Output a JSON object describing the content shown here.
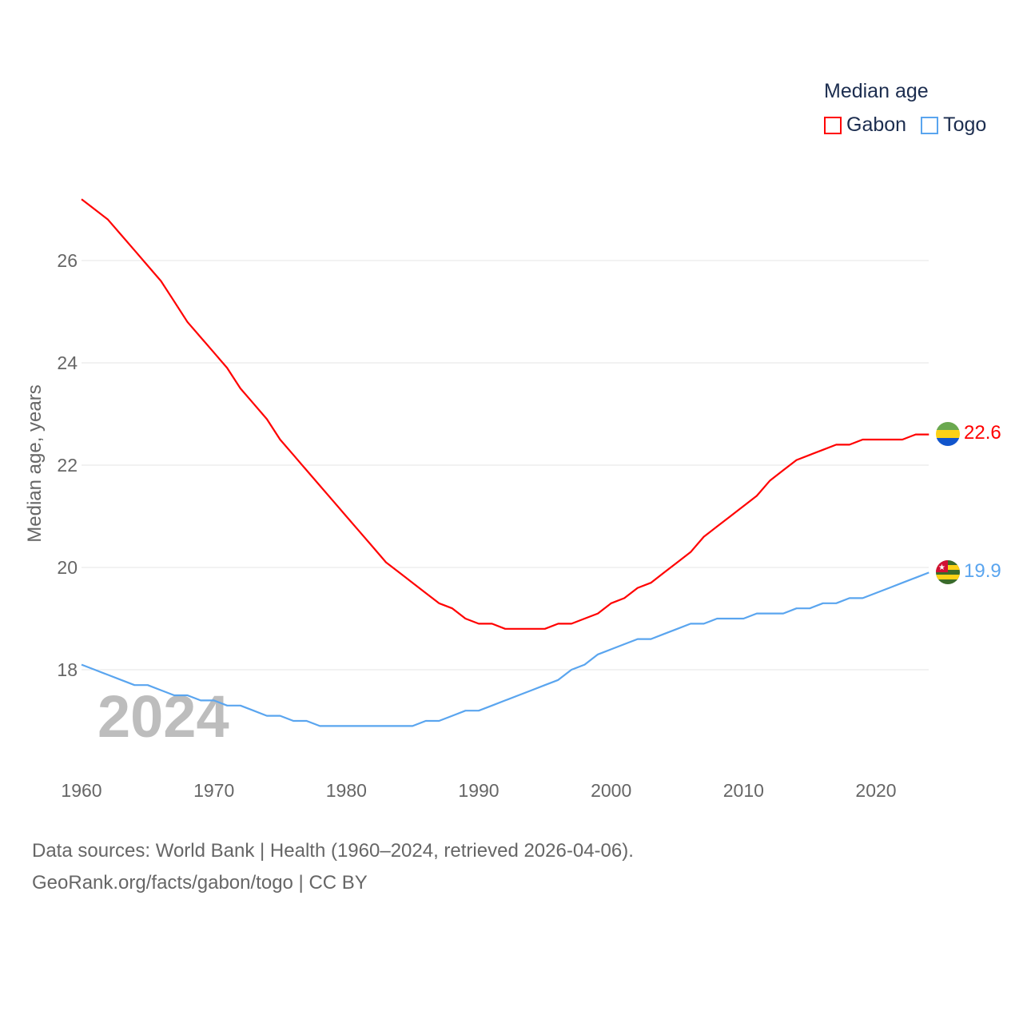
{
  "legend": {
    "title": "Median age",
    "items": [
      {
        "name": "Gabon",
        "color": "#ff0000"
      },
      {
        "name": "Togo",
        "color": "#5aa5ef"
      }
    ]
  },
  "source": {
    "line1": "Data sources: World Bank | Health (1960–2024, retrieved 2026-04-06).",
    "line2": "GeoRank.org/facts/gabon/togo | CC BY"
  },
  "chart_data": {
    "type": "line",
    "title": "Median age",
    "xlabel": "",
    "ylabel": "Median age, years",
    "year_watermark": "2024",
    "xlim": [
      1960,
      2024
    ],
    "ylim": [
      16.0,
      27.5
    ],
    "xticks": [
      1960,
      1970,
      1980,
      1990,
      2000,
      2010,
      2020
    ],
    "yticks": [
      18,
      20,
      22,
      24,
      26
    ],
    "grid": true,
    "legend_position": "top-right",
    "x": [
      1960,
      1961,
      1962,
      1963,
      1964,
      1965,
      1966,
      1967,
      1968,
      1969,
      1970,
      1971,
      1972,
      1973,
      1974,
      1975,
      1976,
      1977,
      1978,
      1979,
      1980,
      1981,
      1982,
      1983,
      1984,
      1985,
      1986,
      1987,
      1988,
      1989,
      1990,
      1991,
      1992,
      1993,
      1994,
      1995,
      1996,
      1997,
      1998,
      1999,
      2000,
      2001,
      2002,
      2003,
      2004,
      2005,
      2006,
      2007,
      2008,
      2009,
      2010,
      2011,
      2012,
      2013,
      2014,
      2015,
      2016,
      2017,
      2018,
      2019,
      2020,
      2021,
      2022,
      2023,
      2024
    ],
    "series": [
      {
        "name": "Gabon",
        "color": "#ff0000",
        "end_label": "22.6",
        "values": [
          27.2,
          27.0,
          26.8,
          26.5,
          26.2,
          25.9,
          25.6,
          25.2,
          24.8,
          24.5,
          24.2,
          23.9,
          23.5,
          23.2,
          22.9,
          22.5,
          22.2,
          21.9,
          21.6,
          21.3,
          21.0,
          20.7,
          20.4,
          20.1,
          19.9,
          19.7,
          19.5,
          19.3,
          19.2,
          19.0,
          18.9,
          18.9,
          18.8,
          18.8,
          18.8,
          18.8,
          18.9,
          18.9,
          19.0,
          19.1,
          19.3,
          19.4,
          19.6,
          19.7,
          19.9,
          20.1,
          20.3,
          20.6,
          20.8,
          21.0,
          21.2,
          21.4,
          21.7,
          21.9,
          22.1,
          22.2,
          22.3,
          22.4,
          22.4,
          22.5,
          22.5,
          22.5,
          22.5,
          22.6,
          22.6
        ]
      },
      {
        "name": "Togo",
        "color": "#5aa5ef",
        "end_label": "19.9",
        "values": [
          18.1,
          18.0,
          17.9,
          17.8,
          17.7,
          17.7,
          17.6,
          17.5,
          17.5,
          17.4,
          17.4,
          17.3,
          17.3,
          17.2,
          17.1,
          17.1,
          17.0,
          17.0,
          16.9,
          16.9,
          16.9,
          16.9,
          16.9,
          16.9,
          16.9,
          16.9,
          17.0,
          17.0,
          17.1,
          17.2,
          17.2,
          17.3,
          17.4,
          17.5,
          17.6,
          17.7,
          17.8,
          18.0,
          18.1,
          18.3,
          18.4,
          18.5,
          18.6,
          18.6,
          18.7,
          18.8,
          18.9,
          18.9,
          19.0,
          19.0,
          19.0,
          19.1,
          19.1,
          19.1,
          19.2,
          19.2,
          19.3,
          19.3,
          19.4,
          19.4,
          19.5,
          19.6,
          19.7,
          19.8,
          19.9
        ]
      }
    ]
  }
}
